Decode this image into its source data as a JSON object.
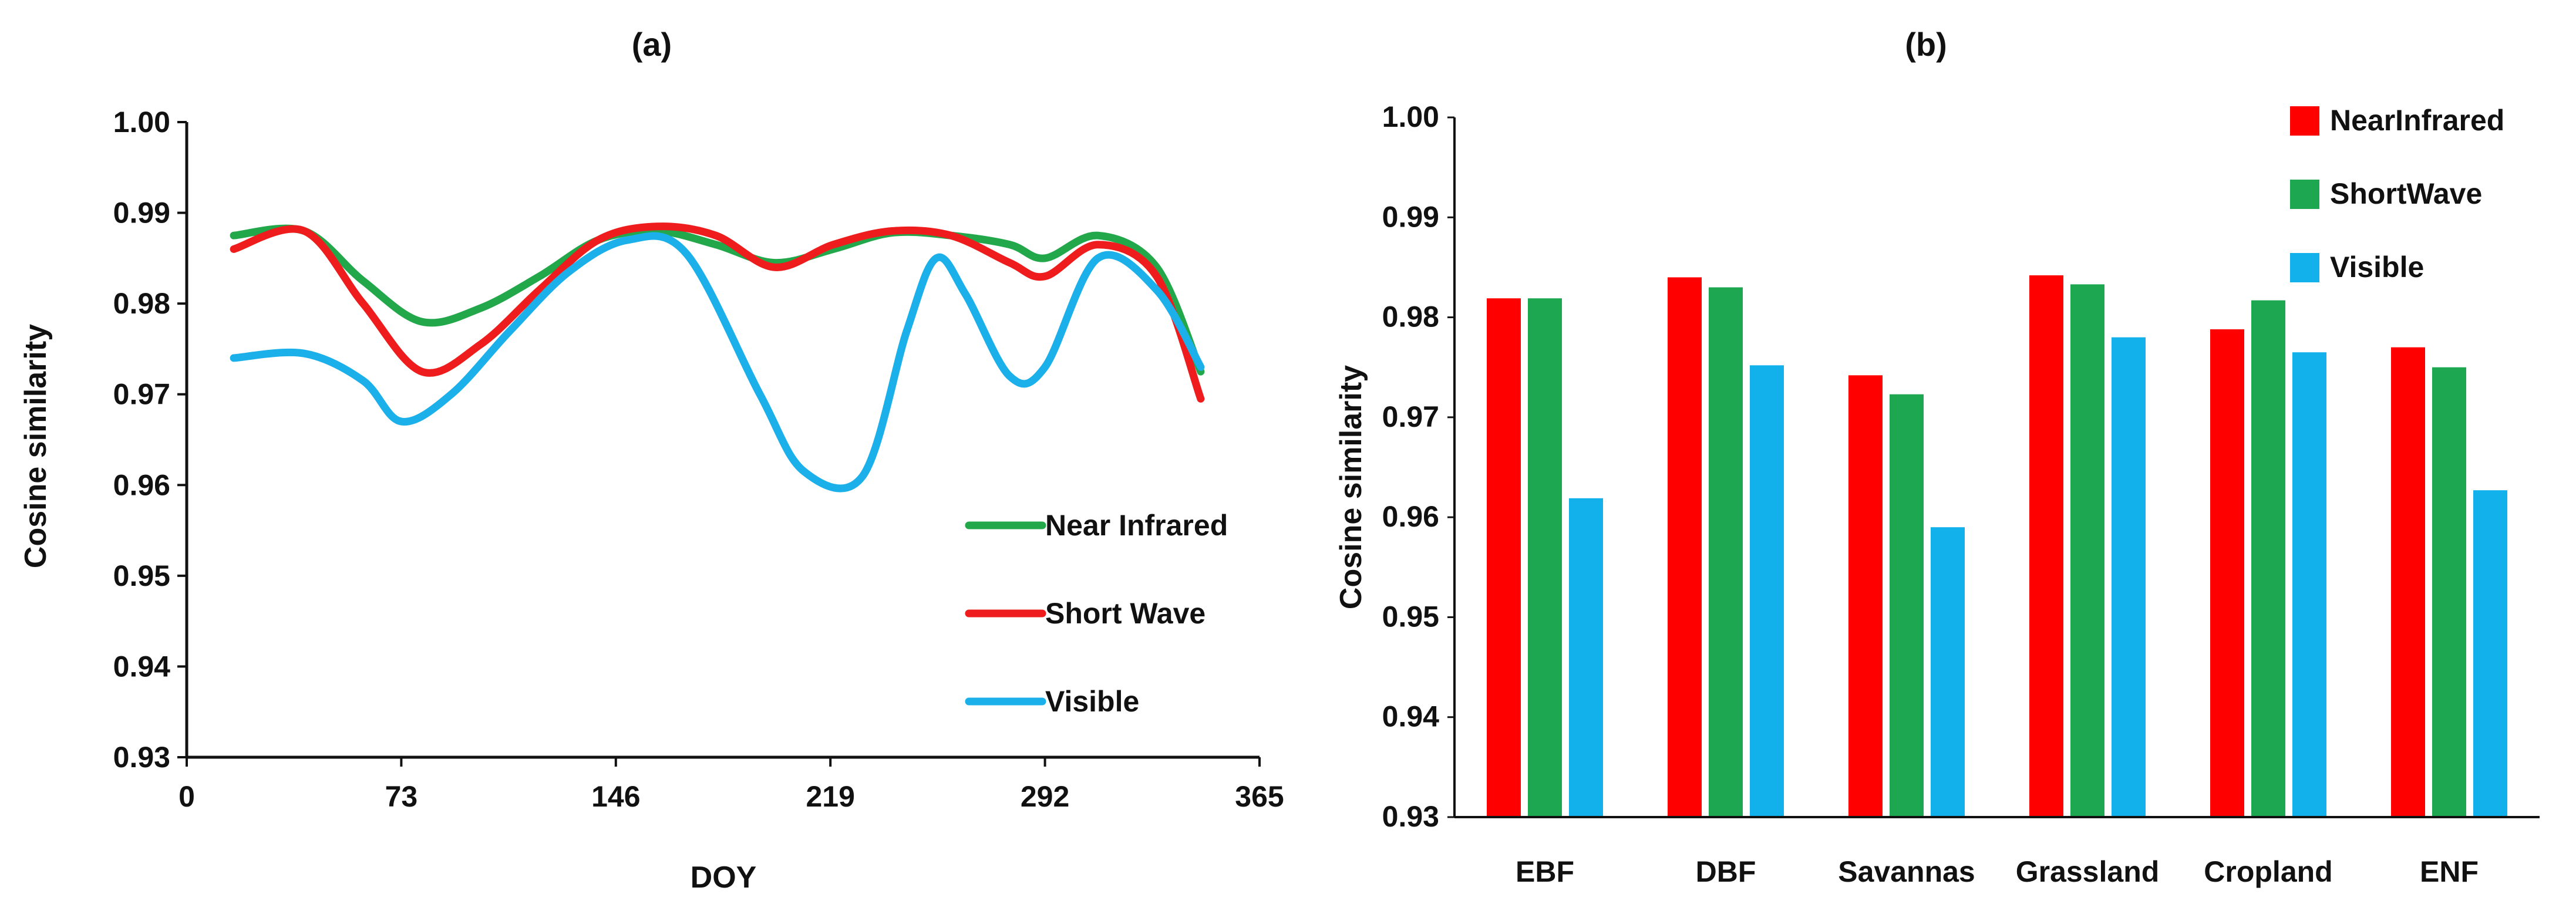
{
  "chart_data": [
    {
      "panel": "(a)",
      "type": "line",
      "title": "(a)",
      "xlabel": "DOY",
      "ylabel": "Cosine similarity",
      "xlim": [
        0,
        365
      ],
      "ylim": [
        0.93,
        1.0
      ],
      "xticks": [
        0,
        73,
        146,
        219,
        292,
        365
      ],
      "yticks": [
        0.93,
        0.94,
        0.95,
        0.96,
        0.97,
        0.98,
        0.99,
        1.0
      ],
      "ytick_labels": [
        "0.93",
        "0.94",
        "0.95",
        "0.96",
        "0.97",
        "0.98",
        "0.99",
        "1.00"
      ],
      "grid": false,
      "legend_position": "bottom-right",
      "series": [
        {
          "name": "Near Infrared",
          "color": "#22A74A",
          "x": [
            16,
            40,
            60,
            80,
            100,
            120,
            140,
            160,
            180,
            200,
            220,
            240,
            260,
            280,
            292,
            310,
            330,
            345
          ],
          "y": [
            0.9875,
            0.988,
            0.9825,
            0.978,
            0.9795,
            0.983,
            0.987,
            0.988,
            0.9865,
            0.9845,
            0.986,
            0.9878,
            0.9875,
            0.9865,
            0.985,
            0.9875,
            0.984,
            0.9725
          ]
        },
        {
          "name": "Short Wave",
          "color": "#EE1C1C",
          "x": [
            16,
            40,
            60,
            80,
            100,
            120,
            140,
            160,
            180,
            200,
            220,
            240,
            260,
            280,
            292,
            310,
            330,
            345
          ],
          "y": [
            0.986,
            0.988,
            0.98,
            0.9725,
            0.9755,
            0.9815,
            0.987,
            0.9885,
            0.9875,
            0.984,
            0.9865,
            0.988,
            0.9875,
            0.9845,
            0.983,
            0.9865,
            0.983,
            0.9695
          ]
        },
        {
          "name": "Visible",
          "color": "#1BB0EA",
          "x": [
            16,
            40,
            60,
            73,
            90,
            110,
            130,
            150,
            170,
            195,
            210,
            230,
            245,
            255,
            265,
            280,
            292,
            310,
            330,
            345
          ],
          "y": [
            0.974,
            0.9745,
            0.9715,
            0.967,
            0.97,
            0.977,
            0.9835,
            0.987,
            0.9855,
            0.97,
            0.9615,
            0.961,
            0.977,
            0.985,
            0.981,
            0.972,
            0.973,
            0.985,
            0.9815,
            0.973
          ]
        }
      ]
    },
    {
      "panel": "(b)",
      "type": "bar",
      "title": "(b)",
      "xlabel": "",
      "ylabel": "Cosine similarity",
      "ylim": [
        0.93,
        1.0
      ],
      "yticks": [
        0.93,
        0.94,
        0.95,
        0.96,
        0.97,
        0.98,
        0.99,
        1.0
      ],
      "ytick_labels": [
        "0.93",
        "0.94",
        "0.95",
        "0.96",
        "0.97",
        "0.98",
        "0.99",
        "1.00"
      ],
      "grid": false,
      "legend_position": "top-right",
      "categories": [
        "EBF",
        "DBF",
        "Savannas",
        "Grassland",
        "Cropland",
        "ENF"
      ],
      "series": [
        {
          "name": "NearInfrared",
          "color": "#FF0000",
          "values": [
            0.9819,
            0.984,
            0.9742,
            0.9842,
            0.9788,
            0.977
          ]
        },
        {
          "name": "ShortWave",
          "color": "#1DA750",
          "values": [
            0.9819,
            0.983,
            0.9723,
            0.9833,
            0.9817,
            0.975
          ]
        },
        {
          "name": "Visible",
          "color": "#13B1EC",
          "values": [
            0.9619,
            0.9752,
            0.959,
            0.978,
            0.9765,
            0.9627
          ]
        }
      ]
    }
  ]
}
